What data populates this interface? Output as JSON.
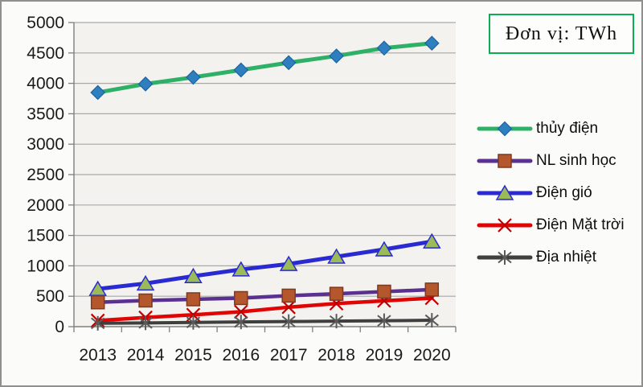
{
  "chart_data": {
    "type": "line",
    "title": "",
    "unit_label": "Đơn vị: TWh",
    "xlabel": "",
    "ylabel": "",
    "categories": [
      "2013",
      "2014",
      "2015",
      "2016",
      "2017",
      "2018",
      "2019",
      "2020"
    ],
    "ylim": [
      0,
      5000
    ],
    "ytick_step": 500,
    "grid": true,
    "legend_position": "right",
    "series": [
      {
        "id": "thuy-dien",
        "name": "thủy điện",
        "line_color": "#2eb167",
        "marker": "diamond",
        "marker_fill": "#2e7fc0",
        "marker_stroke": "#1e639e",
        "values": [
          3850,
          3990,
          4100,
          4220,
          4340,
          4450,
          4580,
          4660
        ]
      },
      {
        "id": "nl-sinh-hoc",
        "name": "NL sinh học",
        "line_color": "#5a3191",
        "marker": "square",
        "marker_fill": "#b5572d",
        "marker_stroke": "#7d3a20",
        "values": [
          400,
          430,
          450,
          470,
          510,
          540,
          575,
          610
        ]
      },
      {
        "id": "dien-gio",
        "name": "Điện gió",
        "line_color": "#2a2ad2",
        "marker": "triangle",
        "marker_fill": "#9bbb59",
        "marker_stroke": "#2a2ad2",
        "values": [
          620,
          710,
          830,
          940,
          1030,
          1150,
          1270,
          1400
        ]
      },
      {
        "id": "dien-mat-troi",
        "name": "Điện Mặt trời",
        "line_color": "#e00505",
        "marker": "xcross",
        "marker_fill": "#c00000",
        "marker_stroke": "#c00000",
        "values": [
          100,
          150,
          195,
          245,
          320,
          380,
          425,
          470
        ]
      },
      {
        "id": "dia-nhiet",
        "name": "Địa nhiệt",
        "line_color": "#3f3f3f",
        "marker": "asterisk",
        "marker_fill": "#5a5a5a",
        "marker_stroke": "#5a5a5a",
        "values": [
          55,
          62,
          70,
          77,
          84,
          91,
          98,
          105
        ]
      }
    ],
    "axis_color": "#7f7f7f",
    "gridline_color": "#a8a8a8",
    "plot_bg_color": "#f3f2ee",
    "unit_box_border_color": "#0ead54"
  }
}
